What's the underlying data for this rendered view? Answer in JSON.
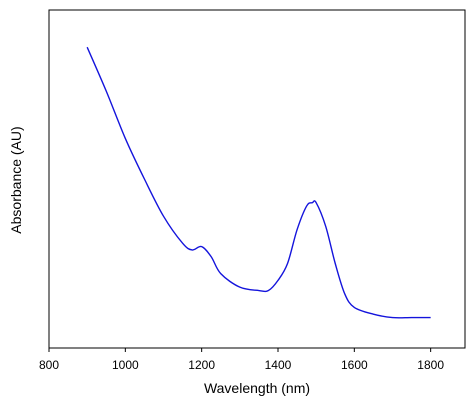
{
  "chart_data": {
    "type": "line",
    "xlabel": "Wavelength (nm)",
    "ylabel": "Absorbance (AU)",
    "x": [
      900,
      950,
      1000,
      1050,
      1100,
      1150,
      1175,
      1200,
      1225,
      1250,
      1300,
      1350,
      1375,
      1400,
      1425,
      1450,
      1475,
      1490,
      1500,
      1525,
      1550,
      1575,
      1600,
      1650,
      1700,
      1750,
      1800
    ],
    "series": [
      {
        "color": "#1414dc",
        "values": [
          0.89,
          0.76,
          0.62,
          0.5,
          0.39,
          0.31,
          0.29,
          0.3,
          0.27,
          0.22,
          0.18,
          0.17,
          0.17,
          0.2,
          0.25,
          0.35,
          0.42,
          0.43,
          0.43,
          0.36,
          0.25,
          0.16,
          0.12,
          0.1,
          0.09,
          0.09,
          0.09
        ]
      }
    ],
    "xlim": [
      800,
      1890
    ],
    "xticks": [
      800,
      1000,
      1200,
      1400,
      1600,
      1800
    ],
    "ylim": [
      0,
      1
    ]
  }
}
